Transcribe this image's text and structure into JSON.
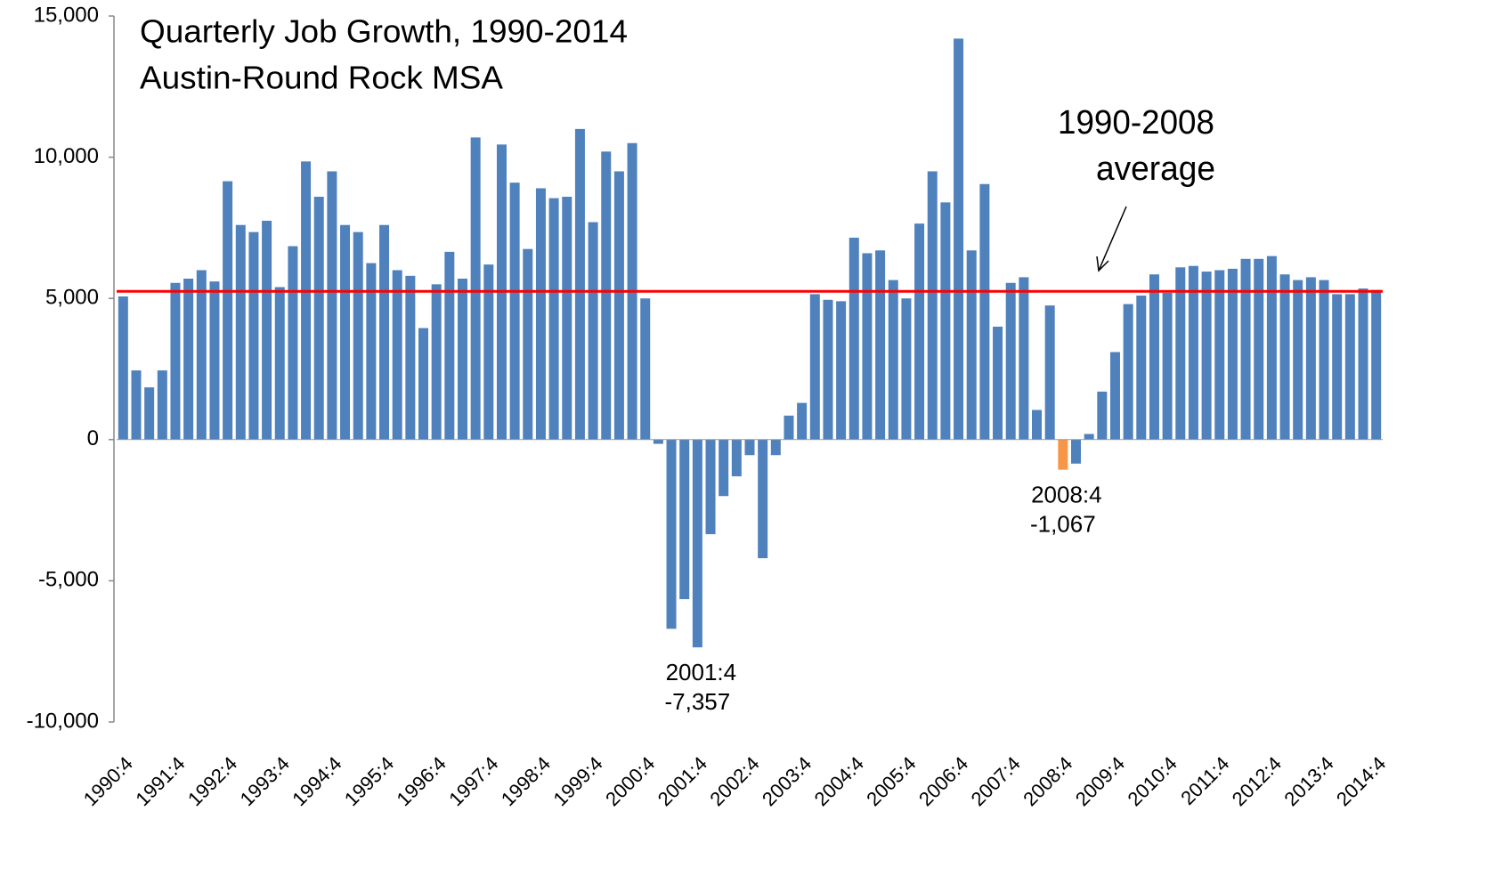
{
  "chart_data": {
    "type": "bar",
    "title": "Quarterly Job Growth, 1990-2014",
    "subtitle": "Austin-Round Rock MSA",
    "categories": [
      "1990:4",
      null,
      null,
      null,
      "1991:4",
      null,
      null,
      null,
      "1992:4",
      null,
      null,
      null,
      "1993:4",
      null,
      null,
      null,
      "1994:4",
      null,
      null,
      null,
      "1995:4",
      null,
      null,
      null,
      "1996:4",
      null,
      null,
      null,
      "1997:4",
      null,
      null,
      null,
      "1998:4",
      null,
      null,
      null,
      "1999:4",
      null,
      null,
      null,
      "2000:4",
      null,
      null,
      null,
      "2001:4",
      null,
      null,
      null,
      "2002:4",
      null,
      null,
      null,
      "2003:4",
      null,
      null,
      null,
      "2004:4",
      null,
      null,
      null,
      "2005:4",
      null,
      null,
      null,
      "2006:4",
      null,
      null,
      null,
      "2007:4",
      null,
      null,
      null,
      "2008:4",
      null,
      null,
      null,
      "2009:4",
      null,
      null,
      null,
      "2010:4",
      null,
      null,
      null,
      "2011:4",
      null,
      null,
      null,
      "2012:4",
      null,
      null,
      null,
      "2013:4",
      null,
      null,
      null,
      "2014:4"
    ],
    "values": [
      5070,
      2450,
      1850,
      2450,
      5550,
      5700,
      6000,
      5600,
      9150,
      7600,
      7350,
      7750,
      5400,
      6850,
      9850,
      8600,
      9500,
      7600,
      7350,
      6250,
      7600,
      6000,
      5800,
      3950,
      5500,
      6650,
      5700,
      10700,
      6200,
      10450,
      9100,
      6750,
      8900,
      8550,
      8600,
      11000,
      7700,
      10200,
      9500,
      10500,
      5000,
      -150,
      -6700,
      -5650,
      -7357,
      -3350,
      -2000,
      -1300,
      -550,
      -4200,
      -550,
      850,
      1300,
      5150,
      4950,
      4900,
      7150,
      6600,
      6700,
      5650,
      5000,
      7650,
      9500,
      8400,
      14200,
      6700,
      9050,
      4000,
      5550,
      5750,
      1050,
      4750,
      -1067,
      -850,
      200,
      1700,
      3100,
      4800,
      5100,
      5850,
      5200,
      6100,
      6150,
      5950,
      6000,
      6050,
      6400,
      6400,
      6500,
      5850,
      5650,
      5750,
      5650,
      5150,
      5150,
      5350,
      5300
    ],
    "value_labels": [
      null,
      null,
      null,
      null,
      null,
      null,
      null,
      null,
      null,
      null,
      null,
      null,
      null,
      null,
      null,
      null,
      null,
      null,
      null,
      null,
      null,
      null,
      null,
      null,
      null,
      null,
      null,
      null,
      null,
      null,
      null,
      null,
      null,
      null,
      null,
      null,
      null,
      null,
      null,
      null,
      null,
      null,
      null,
      null,
      "-7,357",
      null,
      null,
      null,
      null,
      null,
      null,
      null,
      null,
      null,
      null,
      null,
      null,
      null,
      null,
      null,
      null,
      null,
      null,
      null,
      null,
      null,
      null,
      null,
      null,
      null,
      null,
      null,
      "-1,067",
      null,
      null,
      null,
      null,
      null,
      null,
      null,
      null,
      null,
      null,
      null,
      null,
      null,
      null,
      null,
      null,
      null,
      null,
      null,
      null,
      null,
      null,
      null,
      null
    ],
    "colors": [
      "#4f81bd",
      "#4f81bd",
      "#4f81bd",
      "#4f81bd",
      "#4f81bd",
      "#4f81bd",
      "#4f81bd",
      "#4f81bd",
      "#4f81bd",
      "#4f81bd",
      "#4f81bd",
      "#4f81bd",
      "#4f81bd",
      "#4f81bd",
      "#4f81bd",
      "#4f81bd",
      "#4f81bd",
      "#4f81bd",
      "#4f81bd",
      "#4f81bd",
      "#4f81bd",
      "#4f81bd",
      "#4f81bd",
      "#4f81bd",
      "#4f81bd",
      "#4f81bd",
      "#4f81bd",
      "#4f81bd",
      "#4f81bd",
      "#4f81bd",
      "#4f81bd",
      "#4f81bd",
      "#4f81bd",
      "#4f81bd",
      "#4f81bd",
      "#4f81bd",
      "#4f81bd",
      "#4f81bd",
      "#4f81bd",
      "#4f81bd",
      "#4f81bd",
      "#4f81bd",
      "#4f81bd",
      "#4f81bd",
      "#4f81bd",
      "#4f81bd",
      "#4f81bd",
      "#4f81bd",
      "#4f81bd",
      "#4f81bd",
      "#4f81bd",
      "#4f81bd",
      "#4f81bd",
      "#4f81bd",
      "#4f81bd",
      "#4f81bd",
      "#4f81bd",
      "#4f81bd",
      "#4f81bd",
      "#4f81bd",
      "#4f81bd",
      "#4f81bd",
      "#4f81bd",
      "#4f81bd",
      "#4f81bd",
      "#4f81bd",
      "#4f81bd",
      "#4f81bd",
      "#4f81bd",
      "#4f81bd",
      "#4f81bd",
      "#4f81bd",
      "#f79646",
      "#4f81bd",
      "#4f81bd",
      "#4f81bd",
      "#4f81bd",
      "#4f81bd",
      "#4f81bd",
      "#4f81bd",
      "#4f81bd",
      "#4f81bd",
      "#4f81bd",
      "#4f81bd",
      "#4f81bd",
      "#4f81bd",
      "#4f81bd",
      "#4f81bd",
      "#4f81bd",
      "#4f81bd",
      "#4f81bd",
      "#4f81bd",
      "#4f81bd",
      "#4f81bd",
      "#4f81bd",
      "#4f81bd",
      "#4f81bd"
    ],
    "average": {
      "value": 5250,
      "color": "#ff0000",
      "label": [
        "1990-2008",
        "average"
      ]
    },
    "ylim": [
      -10000,
      15000
    ],
    "yticks": [
      {
        "value": -10000,
        "label": "-10,000"
      },
      {
        "value": -5000,
        "label": "-5,000"
      },
      0,
      {
        "value": 5000,
        "label": "5,000"
      },
      {
        "value": 10000,
        "label": "10,000"
      },
      {
        "value": 15000,
        "label": "15,000"
      }
    ],
    "grid": false
  }
}
